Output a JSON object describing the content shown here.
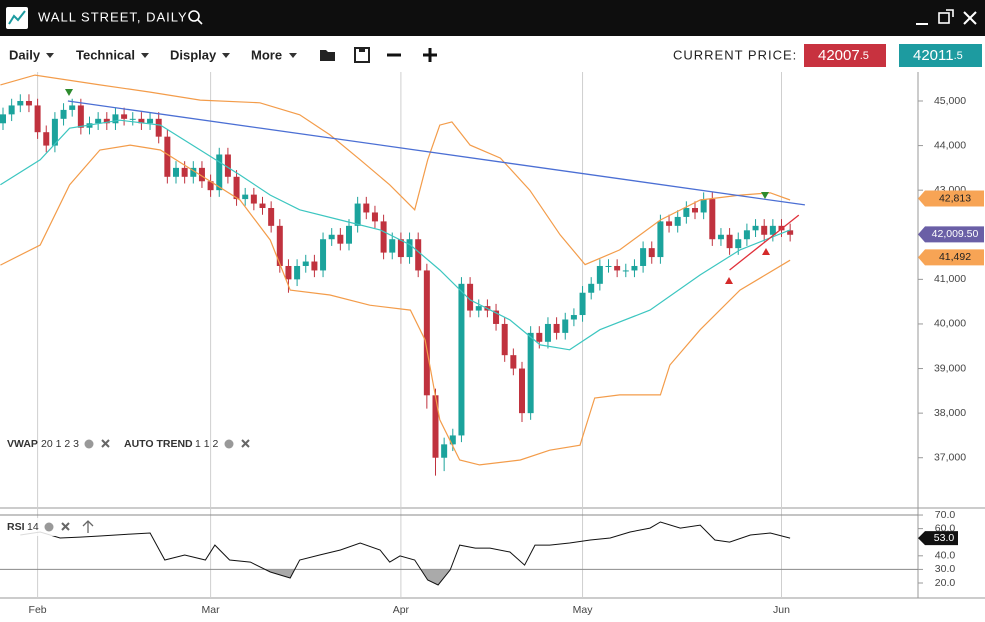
{
  "title_bar": {
    "title": "WALL STREET, DAILY"
  },
  "toolbar": {
    "menus": [
      "Daily",
      "Technical",
      "Display",
      "More"
    ],
    "price_label": "CURRENT PRICE:",
    "sell": {
      "main": "42007",
      "fraction": ".5",
      "color": "#c8323f"
    },
    "buy": {
      "main": "42011",
      "fraction": ".5",
      "color": "#1d9ba0"
    }
  },
  "chart_data": [
    {
      "type": "candlestick",
      "categories": [
        null,
        null,
        null,
        null,
        "Feb",
        null,
        null,
        null,
        null,
        null,
        null,
        null,
        null,
        null,
        null,
        null,
        null,
        null,
        null,
        null,
        null,
        null,
        null,
        null,
        "Mar",
        null,
        null,
        null,
        null,
        null,
        null,
        null,
        null,
        null,
        null,
        null,
        null,
        null,
        null,
        null,
        null,
        null,
        null,
        null,
        null,
        null,
        "Apr",
        null,
        null,
        null,
        null,
        null,
        null,
        null,
        null,
        null,
        null,
        null,
        null,
        null,
        null,
        null,
        null,
        null,
        null,
        null,
        null,
        "May",
        null,
        null,
        null,
        null,
        null,
        null,
        null,
        null,
        null,
        null,
        null,
        null,
        null,
        null,
        null,
        null,
        null,
        null,
        null,
        null,
        null,
        null,
        "Jun",
        null
      ],
      "open": [
        44500,
        44700,
        44900,
        45000,
        44900,
        44300,
        44000,
        44600,
        44800,
        44900,
        44400,
        44500,
        44600,
        44500,
        44700,
        44600,
        44600,
        44500,
        44600,
        44200,
        43300,
        43500,
        43300,
        43500,
        43200,
        43000,
        43800,
        43300,
        42800,
        42900,
        42700,
        42600,
        42200,
        41300,
        41000,
        41300,
        41400,
        41200,
        41900,
        42000,
        41800,
        42200,
        42700,
        42500,
        42300,
        41600,
        41900,
        41500,
        41900,
        41200,
        38400,
        37000,
        37300,
        37500,
        40900,
        40300,
        40400,
        40300,
        40000,
        39300,
        39000,
        38000,
        39800,
        39600,
        40000,
        39800,
        40100,
        40200,
        40700,
        40900,
        41300,
        41300,
        41200,
        41200,
        41300,
        41700,
        41500,
        42300,
        42200,
        42400,
        42600,
        42500,
        42800,
        41900,
        42000,
        41700,
        41900,
        42100,
        42200,
        42000,
        42200,
        42100
      ],
      "high": [
        44850,
        45050,
        45150,
        45150,
        45050,
        44450,
        44750,
        44950,
        45050,
        45050,
        44650,
        44750,
        44750,
        44850,
        44850,
        44750,
        44750,
        44750,
        44750,
        44350,
        43650,
        43650,
        43650,
        43650,
        43350,
        43950,
        43950,
        43450,
        43050,
        43050,
        42850,
        42750,
        42350,
        41450,
        41450,
        41550,
        41550,
        42050,
        42150,
        42150,
        42350,
        42850,
        42850,
        42650,
        42450,
        42050,
        42050,
        42050,
        42050,
        41350,
        38550,
        37450,
        37650,
        41050,
        41050,
        40550,
        40550,
        40450,
        40150,
        39450,
        39150,
        39950,
        39950,
        40150,
        40150,
        40250,
        40350,
        40850,
        41050,
        41450,
        41450,
        41450,
        41350,
        41450,
        41850,
        41850,
        42450,
        42450,
        42550,
        42750,
        42750,
        42950,
        42950,
        42150,
        42150,
        42050,
        42250,
        42350,
        42350,
        42350,
        42350,
        42250
      ],
      "low": [
        44350,
        44550,
        44750,
        44750,
        44150,
        43850,
        43850,
        44450,
        44650,
        44250,
        44250,
        44350,
        44350,
        44350,
        44450,
        44450,
        44350,
        44350,
        44050,
        43150,
        43150,
        43150,
        43150,
        43050,
        42850,
        42850,
        43150,
        42650,
        42650,
        42550,
        42450,
        42050,
        41150,
        40700,
        40850,
        41150,
        41050,
        41050,
        41750,
        41650,
        41650,
        42050,
        42350,
        42150,
        41450,
        41450,
        41350,
        41350,
        41050,
        38100,
        36600,
        36700,
        37150,
        37350,
        40150,
        40150,
        40150,
        39850,
        39150,
        38850,
        37800,
        37850,
        39450,
        39450,
        39650,
        39650,
        39950,
        40050,
        40550,
        40750,
        41150,
        41050,
        41050,
        41050,
        41150,
        41350,
        41350,
        42050,
        42050,
        42250,
        42350,
        42350,
        41750,
        41750,
        41550,
        41550,
        41750,
        41950,
        41850,
        41850,
        41950,
        41850
      ],
      "close": [
        44700,
        44900,
        45000,
        44900,
        44300,
        44000,
        44600,
        44800,
        44900,
        44400,
        44500,
        44600,
        44500,
        44700,
        44600,
        44600,
        44500,
        44600,
        44200,
        43300,
        43500,
        43300,
        43500,
        43200,
        43000,
        43800,
        43300,
        42800,
        42900,
        42700,
        42600,
        42200,
        41300,
        41000,
        41300,
        41400,
        41200,
        41900,
        42000,
        41800,
        42200,
        42700,
        42500,
        42300,
        41600,
        41900,
        41500,
        41900,
        41200,
        38400,
        37000,
        37300,
        37500,
        40900,
        40300,
        40400,
        40300,
        40000,
        39300,
        39000,
        38000,
        39800,
        39600,
        40000,
        39800,
        40100,
        40200,
        40700,
        40900,
        41300,
        41300,
        41200,
        41200,
        41300,
        41700,
        41500,
        42300,
        42200,
        42400,
        42600,
        42500,
        42800,
        41900,
        42000,
        41700,
        41900,
        42100,
        42200,
        42000,
        42200,
        42100,
        42000
      ],
      "up_color": "#1ba39c",
      "down_color": "#c0323e",
      "ylim": [
        35940,
        45650
      ],
      "yticks": [
        {
          "value": 37000,
          "label": "37,000"
        },
        {
          "value": 38000,
          "label": "38,000"
        },
        {
          "value": 39000,
          "label": "39,000"
        },
        {
          "value": 40000,
          "label": "40,000"
        },
        {
          "value": 41000,
          "label": "41,000"
        },
        {
          "value": 42000,
          "label": "42,000"
        },
        {
          "value": 43000,
          "label": "43,000"
        },
        {
          "value": 44000,
          "label": "44,000"
        },
        {
          "value": 45000,
          "label": "45,000"
        }
      ],
      "overlays": [
        {
          "color": "#f39c4a",
          "x": [
            -0.3,
            3.7,
            11.2,
            17,
            22.8,
            29.7,
            34.3,
            37.8,
            41.3,
            44.7,
            47.6,
            49.1,
            50.5,
            51.9,
            54,
            57.5,
            60.9,
            64.4,
            67.3,
            71.3,
            76,
            80.6,
            85.2,
            88.7,
            91
          ],
          "values": [
            45360,
            45580,
            45360,
            45200,
            45020,
            44960,
            44690,
            44240,
            43680,
            43120,
            42560,
            43680,
            44460,
            44530,
            44010,
            43720,
            43000,
            42000,
            41330,
            41660,
            42330,
            42780,
            42890,
            42940,
            42780
          ]
        },
        {
          "color": "#f39c4a",
          "x": [
            -0.3,
            4.3,
            7.7,
            11.2,
            14.7,
            18.2,
            22.8,
            27.4,
            30.9,
            33.2,
            37.8,
            42.4,
            47.1,
            48.8,
            50.5,
            52.8,
            55.1,
            59.8,
            63.2,
            66.7,
            68.4,
            71.3,
            76,
            77.1,
            80.6,
            85.2,
            91
          ],
          "values": [
            41320,
            41770,
            43120,
            43900,
            44010,
            43900,
            43340,
            42780,
            41880,
            40760,
            40650,
            40420,
            40310,
            39640,
            37850,
            36950,
            36840,
            36950,
            37170,
            37280,
            38340,
            38410,
            38410,
            39080,
            39870,
            40760,
            41430
          ]
        },
        {
          "color": "#3cc6c0",
          "x": [
            -0.3,
            4.3,
            7.7,
            13.5,
            18.2,
            22.8,
            27.4,
            30.9,
            34.3,
            39,
            43.6,
            47.1,
            50.5,
            54,
            58.6,
            62.1,
            65.5,
            69,
            74.8,
            80.6,
            85.2,
            91
          ],
          "values": [
            43120,
            43680,
            44390,
            44570,
            44460,
            43900,
            43340,
            42890,
            42560,
            42330,
            42110,
            41770,
            41210,
            40540,
            40090,
            39530,
            39420,
            39870,
            40310,
            41100,
            41660,
            42110
          ]
        },
        {
          "color": "#4b6fd4",
          "x": [
            7.5,
            92.7
          ],
          "values": [
            45000,
            42670
          ]
        },
        {
          "color": "#e0303a",
          "x": [
            84,
            92
          ],
          "values": [
            41210,
            42440
          ]
        }
      ],
      "price_tags": [
        {
          "value": 42813,
          "label": "42,813",
          "color": "#f7a455",
          "text_color": "#222"
        },
        {
          "value": 42009.5,
          "label": "42,009.50",
          "color": "#6a5fa6",
          "text_color": "#fff"
        },
        {
          "value": 41492,
          "label": "41,492",
          "color": "#f7a455",
          "text_color": "#222"
        }
      ],
      "indicators": [
        {
          "label": "VWAP",
          "params": "20 1 2 3"
        },
        {
          "label": "AUTO TREND",
          "params": "1 1 2"
        }
      ]
    },
    {
      "type": "line",
      "label": "RSI",
      "period": "14",
      "color": "#111",
      "x": [
        2,
        4.3,
        6.6,
        8.9,
        11.2,
        14.7,
        17,
        18.7,
        21,
        23.4,
        24.5,
        26.2,
        28.6,
        30.9,
        33.2,
        34.3,
        36.6,
        39,
        41.3,
        43.6,
        44.7,
        45.9,
        47.6,
        49.1,
        50.3,
        51.7,
        52.8,
        54.6,
        56.3,
        58.6,
        60.3,
        61.5,
        63.2,
        65.5,
        67.9,
        70.2,
        72.5,
        74.8,
        76,
        78.3,
        80.6,
        82.3,
        84,
        86.4,
        88.7,
        91
      ],
      "values": [
        55.3,
        57.5,
        53.1,
        53.8,
        54.6,
        56,
        56.8,
        36.9,
        40.6,
        36.9,
        47.9,
        36.9,
        35.4,
        28.1,
        23.7,
        36.9,
        40.6,
        44.3,
        49.4,
        44.3,
        35.4,
        39.9,
        36.9,
        22.2,
        18.5,
        29.6,
        47.9,
        45.7,
        45.7,
        42.8,
        33.2,
        47.9,
        47.9,
        49.4,
        51.6,
        53.1,
        57.5,
        60.4,
        64.9,
        60.4,
        62.6,
        51.6,
        50.1,
        55.3,
        56.8,
        53
      ],
      "ylim": [
        9.7,
        73.7
      ],
      "yticks": [
        {
          "value": 70,
          "label": "70.0"
        },
        {
          "value": 60,
          "label": "60.0"
        },
        {
          "value": 40,
          "label": "40.0"
        },
        {
          "value": 30,
          "label": "30.0"
        },
        {
          "value": 20,
          "label": "20.0"
        }
      ],
      "levels": [
        70,
        30
      ],
      "last_tag": {
        "value": 53,
        "label": "53.0"
      }
    }
  ]
}
